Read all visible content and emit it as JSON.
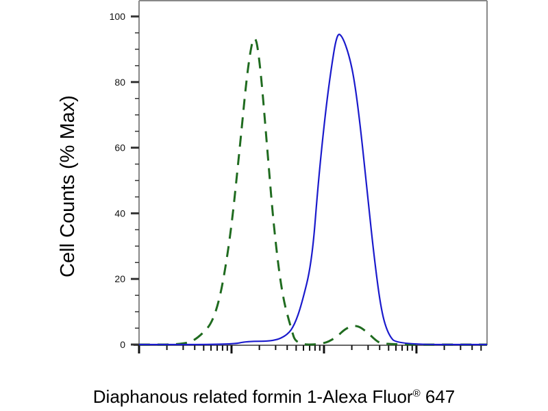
{
  "chart_data": {
    "type": "line",
    "title": "",
    "xlabel": "Diaphanous related formin 1-Alexa Fluor",
    "xlabel_reg": "®",
    "xlabel_suffix": " 647",
    "ylabel": "Cell Counts (% Max)",
    "x_scale": "log",
    "xlim": [
      1,
      5800
    ],
    "ylim": [
      0,
      100
    ],
    "yticks": [
      0,
      20,
      40,
      60,
      80,
      100
    ],
    "ytick_labels": [
      "0",
      "20",
      "40",
      "60",
      "80",
      "100"
    ],
    "x_tick_labels_shown": false,
    "grid": false,
    "legend": "none",
    "series": [
      {
        "style": "dashed",
        "color": "#1f6b1f",
        "x": [
          1,
          3.1,
          4.4,
          6.8,
          9.5,
          12.3,
          15,
          17.8,
          20.5,
          24.3,
          28.8,
          35.3,
          44,
          50,
          95,
          134,
          172,
          224,
          288,
          372,
          438,
          5800
        ],
        "y": [
          0,
          0,
          2,
          8,
          30,
          60,
          85,
          96,
          85,
          60,
          35,
          15,
          5,
          0,
          0,
          2,
          5,
          6,
          4,
          1,
          0,
          0
        ]
      },
      {
        "style": "solid",
        "color": "#1a1acc",
        "x": [
          1,
          10.3,
          14.5,
          29,
          40.5,
          48,
          57,
          74,
          87,
          103,
          118,
          138,
          158,
          188,
          215,
          251,
          297,
          354,
          418,
          496,
          620,
          5800
        ],
        "y": [
          0,
          0,
          1,
          1,
          3,
          6,
          12,
          25,
          50,
          70,
          83,
          95,
          94,
          88,
          80,
          65,
          45,
          25,
          10,
          3,
          0,
          0
        ]
      }
    ]
  }
}
